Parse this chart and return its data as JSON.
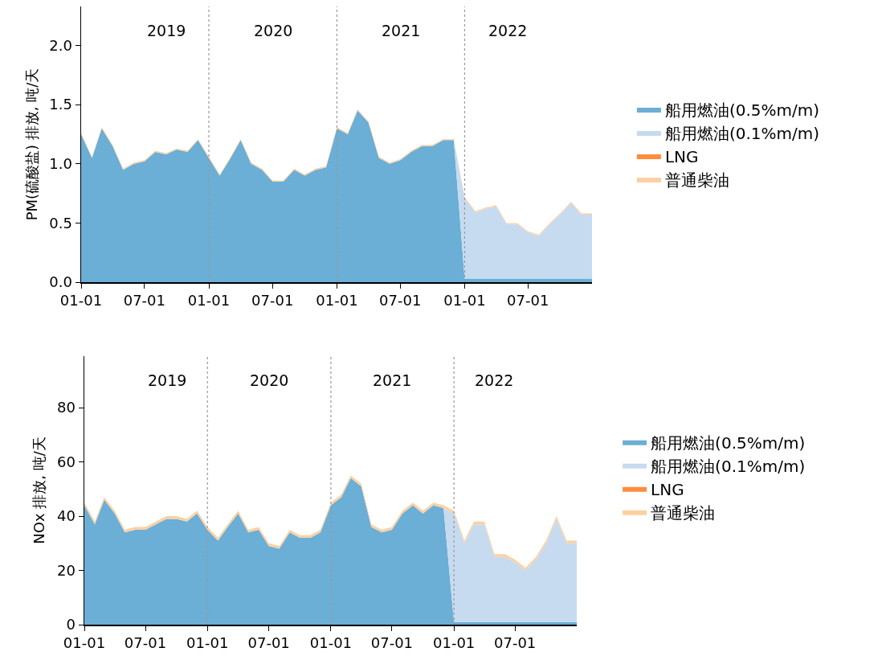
{
  "chart_data": [
    {
      "type": "area",
      "ylabel": "PM(硫酸盐) 排放, 吨/天",
      "stacked": true,
      "legend": "right",
      "x": [
        "2019-01",
        "2019-02",
        "2019-03",
        "2019-04",
        "2019-05",
        "2019-06",
        "2019-07",
        "2019-08",
        "2019-09",
        "2019-10",
        "2019-11",
        "2019-12",
        "2020-01",
        "2020-02",
        "2020-03",
        "2020-04",
        "2020-05",
        "2020-06",
        "2020-07",
        "2020-08",
        "2020-09",
        "2020-10",
        "2020-11",
        "2020-12",
        "2021-01",
        "2021-02",
        "2021-03",
        "2021-04",
        "2021-05",
        "2021-06",
        "2021-07",
        "2021-08",
        "2021-09",
        "2021-10",
        "2021-11",
        "2021-12",
        "2022-01",
        "2022-02",
        "2022-03",
        "2022-04",
        "2022-05",
        "2022-06",
        "2022-07",
        "2022-08",
        "2022-09",
        "2022-10",
        "2022-11",
        "2022-12",
        "2022-12-31"
      ],
      "xlim": [
        "2019-01-01",
        "2022-12-31"
      ],
      "xticks": [
        {
          "value": "2019-01-01",
          "label": "01-01"
        },
        {
          "value": "2019-07-01",
          "label": "07-01"
        },
        {
          "value": "2020-01-01",
          "label": "01-01"
        },
        {
          "value": "2020-07-01",
          "label": "07-01"
        },
        {
          "value": "2021-01-01",
          "label": "01-01"
        },
        {
          "value": "2021-07-01",
          "label": "07-01"
        },
        {
          "value": "2022-01-01",
          "label": "01-01"
        },
        {
          "value": "2022-07-01",
          "label": "07-01"
        }
      ],
      "ylim": [
        0,
        2.33
      ],
      "yticks": [
        {
          "value": 0,
          "label": "0.0"
        },
        {
          "value": 0.5,
          "label": "0.5"
        },
        {
          "value": 1,
          "label": "1.0"
        },
        {
          "value": 1.5,
          "label": "1.5"
        },
        {
          "value": 2,
          "label": "2.0"
        }
      ],
      "series": [
        {
          "name": "船用燃油(0.5%m/m)",
          "color": "#6baed6",
          "values": [
            1.25,
            1.05,
            1.3,
            1.15,
            0.95,
            1.0,
            1.02,
            1.1,
            1.08,
            1.12,
            1.1,
            1.2,
            1.05,
            0.9,
            1.04,
            1.2,
            1.0,
            0.95,
            0.85,
            0.85,
            0.95,
            0.9,
            0.95,
            0.97,
            1.3,
            1.25,
            1.45,
            1.35,
            1.05,
            1.0,
            1.03,
            1.1,
            1.15,
            1.15,
            1.2,
            1.2,
            0.03,
            0.03,
            0.03,
            0.03,
            0.03,
            0.03,
            0.03,
            0.03,
            0.03,
            0.03,
            0.03,
            0.03,
            0.03
          ]
        },
        {
          "name": "船用燃油(0.1%m/m)",
          "color": "#c6dbef",
          "values": [
            0,
            0,
            0,
            0,
            0,
            0,
            0,
            0,
            0,
            0,
            0,
            0,
            0,
            0,
            0,
            0,
            0,
            0,
            0,
            0,
            0,
            0,
            0,
            0,
            0,
            0,
            0,
            0,
            0,
            0,
            0,
            0,
            0,
            0,
            0,
            0,
            0.68,
            0.56,
            0.59,
            0.61,
            0.46,
            0.46,
            0.39,
            0.36,
            0.46,
            0.54,
            0.64,
            0.54,
            0.54
          ]
        },
        {
          "name": "LNG",
          "color": "#fd8d3c",
          "values": [
            null,
            null,
            null,
            null,
            null,
            null,
            null,
            null,
            null,
            null,
            null,
            null,
            null,
            null,
            null,
            null,
            null,
            null,
            null,
            null,
            null,
            null,
            null,
            null,
            null,
            null,
            null,
            null,
            null,
            null,
            null,
            null,
            null,
            null,
            null,
            null,
            null,
            null,
            null,
            null,
            null,
            null,
            null,
            null,
            null,
            null,
            null,
            null,
            null
          ]
        },
        {
          "name": "普通柴油",
          "color": "#fdd0a2",
          "values": [
            0.01,
            0.01,
            0.01,
            0.01,
            0.01,
            0.01,
            0.01,
            0.01,
            0.01,
            0.01,
            0.01,
            0.01,
            0.01,
            0.01,
            0.01,
            0.01,
            0.01,
            0.01,
            0.01,
            0.01,
            0.01,
            0.01,
            0.01,
            0.01,
            0.01,
            0.01,
            0.01,
            0.01,
            0.01,
            0.01,
            0.01,
            0.01,
            0.01,
            0.01,
            0.01,
            0.01,
            0.01,
            0.01,
            0.01,
            0.01,
            0.01,
            0.01,
            0.01,
            0.01,
            0.01,
            0.01,
            0.01,
            0.01,
            0.01
          ]
        }
      ],
      "ref_lines": [
        {
          "axis": "x",
          "value": "2020-01-01",
          "color": "#999999",
          "line_style": "dotted"
        },
        {
          "axis": "x",
          "value": "2021-01-01",
          "color": "#999999",
          "line_style": "dotted"
        },
        {
          "axis": "x",
          "value": "2022-01-01",
          "color": "#999999",
          "line_style": "dotted"
        }
      ],
      "annotations": [
        "2019",
        "2020",
        "2021",
        "2022"
      ]
    },
    {
      "type": "area",
      "ylabel": "NOx 排放, 吨/天",
      "stacked": true,
      "legend": "right",
      "x": [
        "2019-01",
        "2019-02",
        "2019-03",
        "2019-04",
        "2019-05",
        "2019-06",
        "2019-07",
        "2019-08",
        "2019-09",
        "2019-10",
        "2019-11",
        "2019-12",
        "2020-01",
        "2020-02",
        "2020-03",
        "2020-04",
        "2020-05",
        "2020-06",
        "2020-07",
        "2020-08",
        "2020-09",
        "2020-10",
        "2020-11",
        "2020-12",
        "2021-01",
        "2021-02",
        "2021-03",
        "2021-04",
        "2021-05",
        "2021-06",
        "2021-07",
        "2021-08",
        "2021-09",
        "2021-10",
        "2021-11",
        "2021-12",
        "2022-01",
        "2022-02",
        "2022-03",
        "2022-04",
        "2022-05",
        "2022-06",
        "2022-07",
        "2022-08",
        "2022-09",
        "2022-10",
        "2022-11",
        "2022-12",
        "2022-12-31"
      ],
      "xlim": [
        "2019-01-01",
        "2022-12-31"
      ],
      "xticks": [
        {
          "value": "2019-01-01",
          "label": "01-01"
        },
        {
          "value": "2019-07-01",
          "label": "07-01"
        },
        {
          "value": "2020-01-01",
          "label": "01-01"
        },
        {
          "value": "2020-07-01",
          "label": "07-01"
        },
        {
          "value": "2021-01-01",
          "label": "01-01"
        },
        {
          "value": "2021-07-01",
          "label": "07-01"
        },
        {
          "value": "2022-01-01",
          "label": "01-01"
        },
        {
          "value": "2022-07-01",
          "label": "07-01"
        }
      ],
      "ylim": [
        0,
        99
      ],
      "yticks": [
        0,
        20,
        40,
        60,
        80
      ],
      "series": [
        {
          "name": "船用燃油(0.5%m/m)",
          "color": "#6baed6",
          "values": [
            44,
            37,
            46,
            41,
            34,
            35,
            35,
            37,
            39,
            39,
            38,
            41,
            35,
            31,
            36,
            41,
            34,
            35,
            29,
            28,
            34,
            32,
            32,
            34,
            44,
            47,
            54,
            51,
            36,
            34,
            35,
            41,
            44,
            41,
            44,
            43,
            1,
            1,
            1,
            1,
            1,
            1,
            1,
            1,
            1,
            1,
            1,
            1,
            1
          ]
        },
        {
          "name": "船用燃油(0.1%m/m)",
          "color": "#c6dbef",
          "values": [
            0,
            0,
            0,
            0,
            0,
            0,
            0,
            0,
            0,
            0,
            0,
            0,
            0,
            0,
            0,
            0,
            0,
            0,
            0,
            0,
            0,
            0,
            0,
            0,
            0,
            0,
            0,
            0,
            0,
            0,
            0,
            0,
            0,
            0,
            0,
            0,
            40,
            29,
            36,
            36,
            24,
            24,
            22,
            19,
            23,
            29,
            38,
            29,
            29
          ]
        },
        {
          "name": "LNG",
          "color": "#fd8d3c",
          "values": [
            null,
            null,
            null,
            null,
            null,
            null,
            null,
            null,
            null,
            null,
            null,
            null,
            null,
            null,
            null,
            null,
            null,
            null,
            null,
            null,
            null,
            null,
            null,
            null,
            null,
            null,
            null,
            null,
            null,
            null,
            null,
            null,
            null,
            null,
            null,
            null,
            null,
            null,
            null,
            null,
            null,
            null,
            null,
            null,
            null,
            null,
            null,
            null,
            null
          ]
        },
        {
          "name": "普通柴油",
          "color": "#fdd0a2",
          "values": [
            1,
            1,
            1,
            1,
            1,
            1,
            1,
            1,
            1,
            1,
            1,
            1,
            1,
            1,
            1,
            1,
            1,
            1,
            1,
            1,
            1,
            1,
            1,
            1,
            1,
            1,
            1,
            1,
            1,
            1,
            1,
            1,
            1,
            1,
            1,
            1,
            1,
            1,
            1,
            1,
            1,
            1,
            1,
            1,
            1,
            1,
            1,
            1,
            1
          ]
        }
      ],
      "ref_lines": [
        {
          "axis": "x",
          "value": "2020-01-01",
          "color": "#999999",
          "line_style": "dotted"
        },
        {
          "axis": "x",
          "value": "2021-01-01",
          "color": "#999999",
          "line_style": "dotted"
        },
        {
          "axis": "x",
          "value": "2022-01-01",
          "color": "#999999",
          "line_style": "dotted"
        }
      ],
      "annotations": [
        "2019",
        "2020",
        "2021",
        "2022"
      ]
    }
  ]
}
